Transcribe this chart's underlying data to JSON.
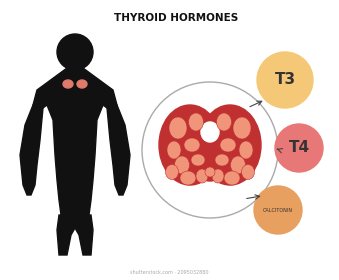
{
  "title": "THYROID HORMONES",
  "title_fontsize": 7.5,
  "title_fontweight": "bold",
  "bg_color": "#ffffff",
  "silhouette_color": "#111111",
  "thyroid_highlight_color": "#e07a6a",
  "circle_outline_color": "#aaaaaa",
  "thyroid_dark_color": "#c03030",
  "follicle_color": "#f0957a",
  "t3_circle_color": "#f5c878",
  "t4_circle_color": "#e87878",
  "calcitonin_circle_color": "#e8a060",
  "t3_label": "T3",
  "t4_label": "T4",
  "calcitonin_label": "CALCITONIN",
  "arrow_color": "#444444",
  "watermark": "shutterstock.com · 2095032880",
  "fig_w": 3.39,
  "fig_h": 2.8,
  "dpi": 100
}
